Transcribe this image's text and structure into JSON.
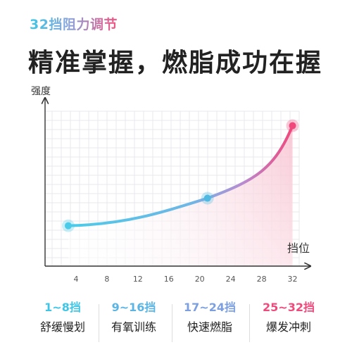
{
  "subtitle": "32挡阻力调节",
  "headline": "精准掌握，燃脂成功在握",
  "colors": {
    "start": "#4ccbe8",
    "end": "#f0477c",
    "grid": "#e9e9ee",
    "axis": "#333333"
  },
  "levels": [
    {
      "range": "1~8挡",
      "name": "舒缓慢划",
      "color": "#3fc6e6"
    },
    {
      "range": "9~16挡",
      "name": "有氧训练",
      "color": "#5ab4e4"
    },
    {
      "range": "17~24挡",
      "name": "快速燃脂",
      "color": "#7c9fe0"
    },
    {
      "range": "25~32挡",
      "name": "爆发冲刺",
      "color": "#ee4a7c"
    }
  ],
  "chart_data": {
    "type": "line",
    "xlabel": "挡位",
    "ylabel": "强度",
    "xticks": [
      4,
      8,
      12,
      16,
      20,
      24,
      28,
      32
    ],
    "xlim": [
      0,
      33.5
    ],
    "ylim": [
      0,
      100
    ],
    "grid": true,
    "series": [
      {
        "x": [
          3,
          21,
          32
        ],
        "y": [
          22,
          41,
          91
        ],
        "highlighted_points": [
          [
            3,
            22
          ],
          [
            21,
            41
          ],
          [
            32,
            91
          ]
        ]
      }
    ]
  }
}
